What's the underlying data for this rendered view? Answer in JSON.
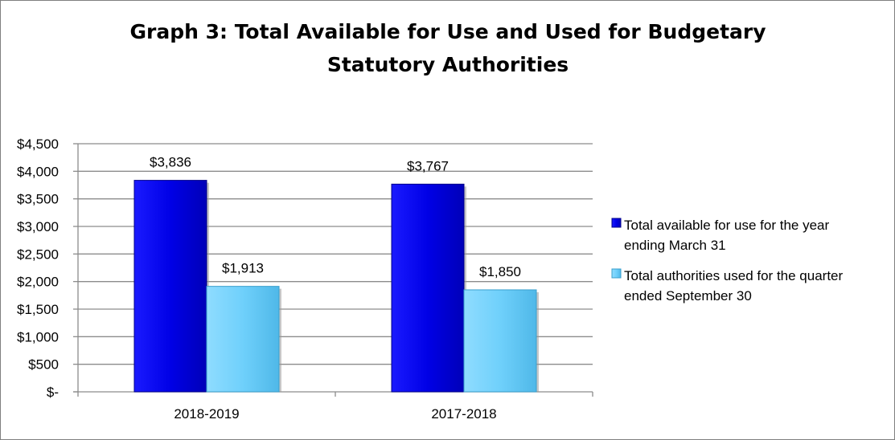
{
  "chart_data": {
    "type": "bar",
    "title_lines": [
      "Graph 3: Total Available for Use and Used for Budgetary",
      "Statutory Authorities"
    ],
    "categories": [
      "2018-2019",
      "2017-2018"
    ],
    "series": [
      {
        "name_lines": [
          "Total available for use for the year",
          "ending March 31"
        ],
        "values": [
          3836,
          3767
        ],
        "value_labels": [
          "$3,836",
          "$3,767"
        ],
        "color": "#0000ee"
      },
      {
        "name_lines": [
          "Total authorities used for the quarter",
          "ended September 30"
        ],
        "values": [
          1913,
          1850
        ],
        "value_labels": [
          "$1,913",
          "$1,850"
        ],
        "color": "#66ccff"
      }
    ],
    "y_ticks": [
      0,
      500,
      1000,
      1500,
      2000,
      2500,
      3000,
      3500,
      4000,
      4500
    ],
    "y_tick_labels": [
      "$-",
      "$500",
      "$1,000",
      "$1,500",
      "$2,000",
      "$2,500",
      "$3,000",
      "$3,500",
      "$4,000",
      "$4,500"
    ],
    "ylim": [
      0,
      4500
    ],
    "grid": true,
    "legend_position": "right"
  }
}
